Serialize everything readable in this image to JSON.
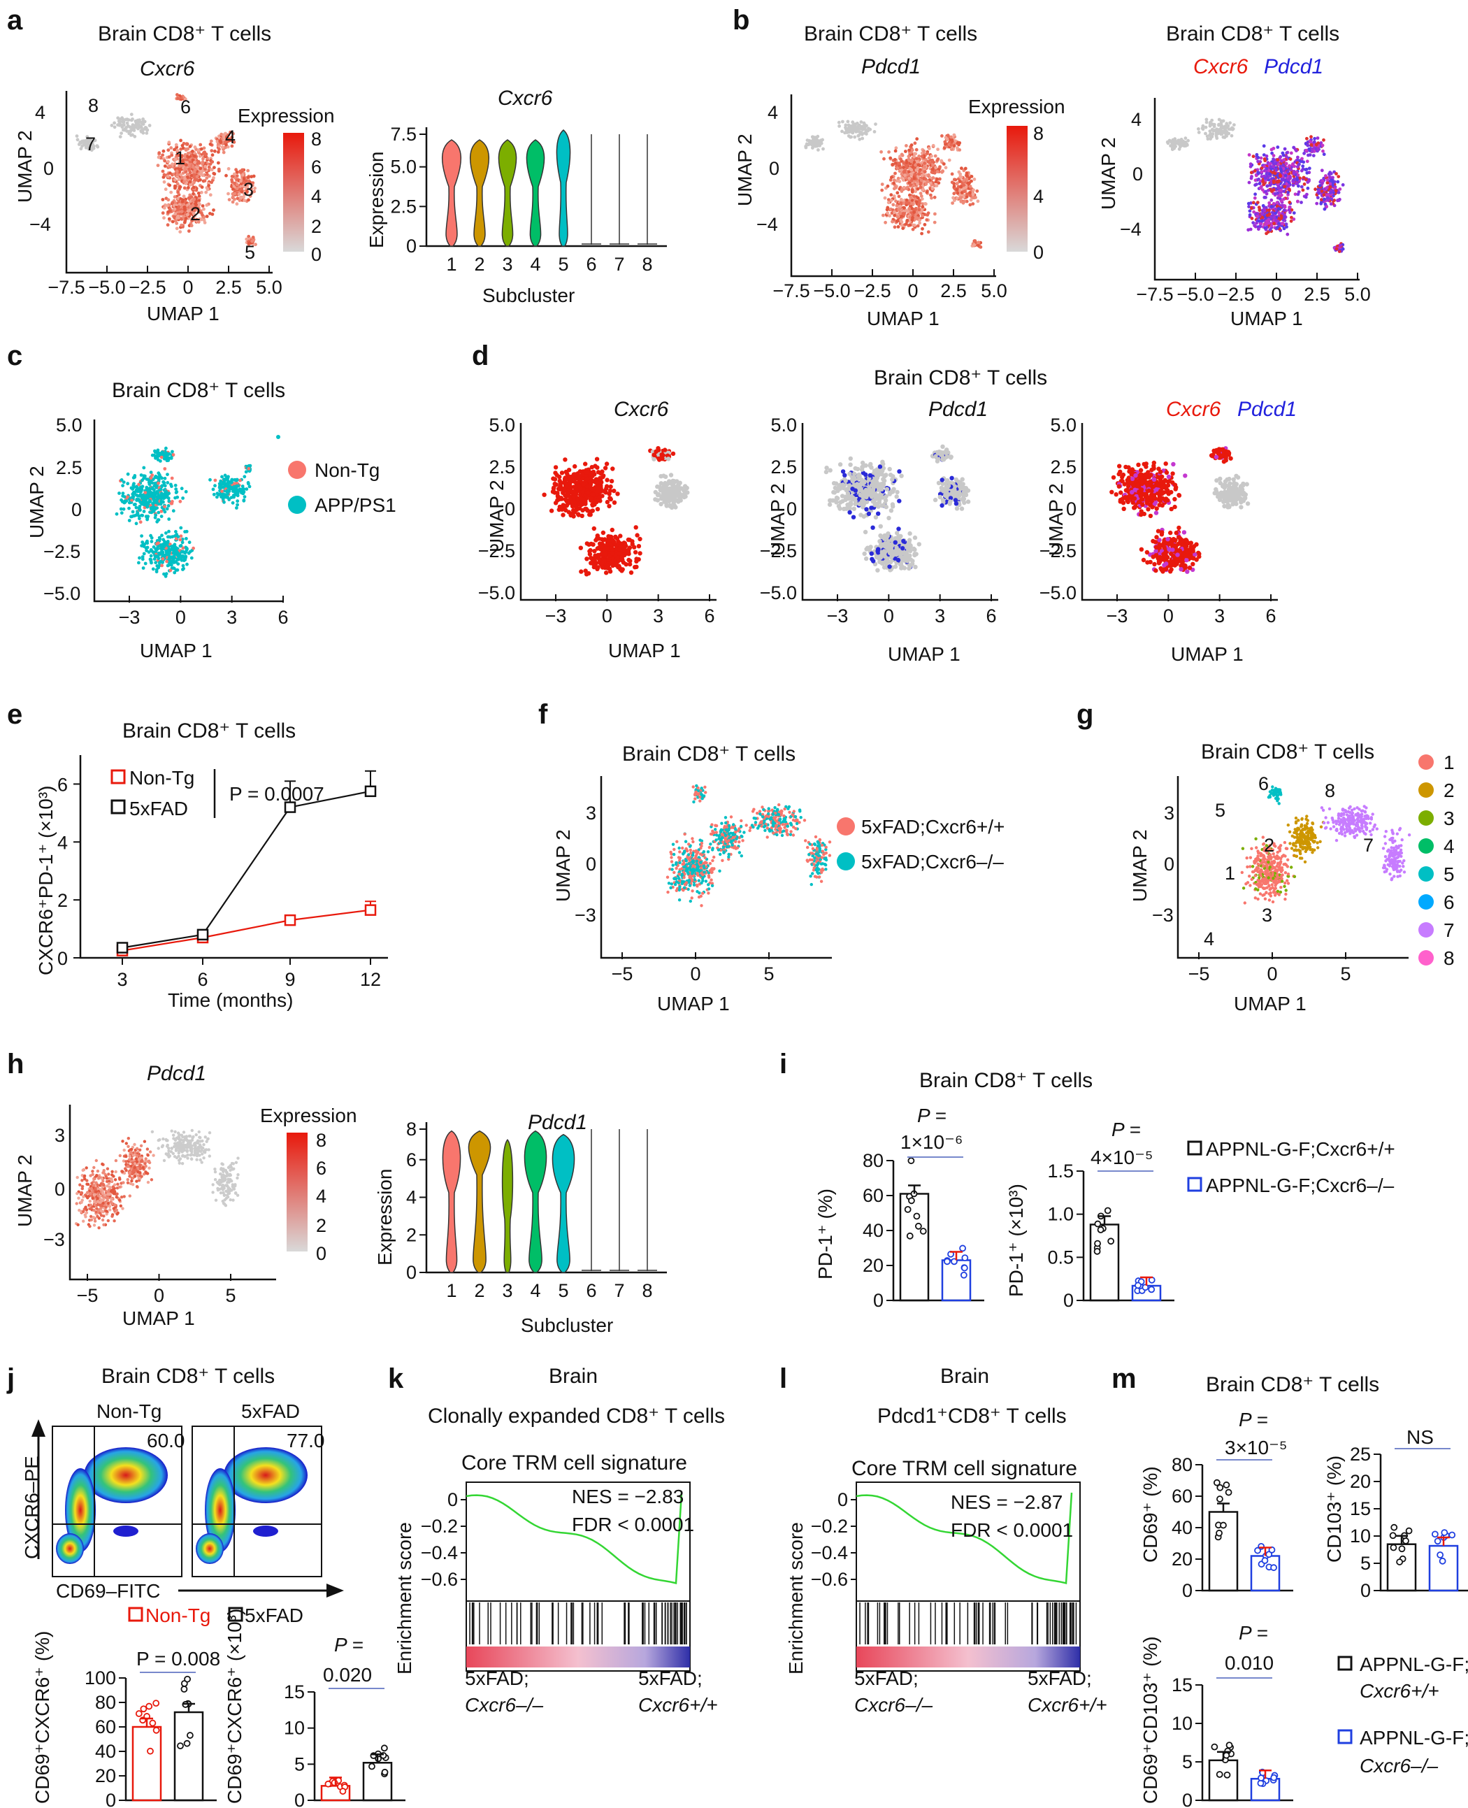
{
  "panel_labels": [
    "a",
    "b",
    "c",
    "d",
    "e",
    "f",
    "g",
    "h",
    "i",
    "j",
    "k",
    "l",
    "m"
  ],
  "title_brain_cd8": "Brain CD8⁺ T cells",
  "gene_cxcr6": "Cxcr6",
  "gene_pdcd1": "Pdcd1",
  "axis_umap1": "UMAP 1",
  "axis_umap2": "UMAP 2",
  "axis_expression": "Expression",
  "axis_subcluster": "Subcluster",
  "legend_expression": "Expression",
  "ticks_a_x": [
    "−7.5",
    "−5.0",
    "−2.5",
    "0",
    "2.5",
    "5.0"
  ],
  "ticks_a_y": [
    "4",
    "0",
    "−4"
  ],
  "ticks_expr": [
    "8",
    "6",
    "4",
    "2",
    "0"
  ],
  "ticks_b_expr": [
    "8",
    "4",
    "0"
  ],
  "ticks_violin_a_y": [
    "7.5",
    "5.0",
    "2.5",
    "0"
  ],
  "ticks_violin_h_y": [
    "8",
    "6",
    "4",
    "2",
    "0"
  ],
  "subcluster_labels": [
    "1",
    "2",
    "3",
    "4",
    "5",
    "6",
    "7",
    "8"
  ],
  "cluster_colors": [
    "#f8766d",
    "#cd9600",
    "#7cae00",
    "#00be67",
    "#00bfc4",
    "#00a9ff",
    "#c77cff",
    "#ff61cc"
  ],
  "ticks_c_x": [
    "−3",
    "0",
    "3",
    "6"
  ],
  "ticks_c_y": [
    "5.0",
    "2.5",
    "0",
    "−2.5",
    "−5.0"
  ],
  "legend_c": [
    "Non-Tg",
    "APP/PS1"
  ],
  "panel_e": {
    "title": "Brain CD8⁺ T cells",
    "legend": [
      "Non-Tg",
      "5xFAD"
    ],
    "pvalue": "P = 0.0007",
    "ylabel": "CXCR6⁺PD-1⁺ (×10³)",
    "xlabel": "Time (months)"
  },
  "ticks_f_x": [
    "−5",
    "0",
    "5"
  ],
  "ticks_f_y": [
    "3",
    "0",
    "−3"
  ],
  "legend_f": [
    "5xFAD;Cxcr6+/+",
    "5xFAD;Cxcr6–/–"
  ],
  "panel_i": {
    "title": "Brain CD8⁺ T cells",
    "p_left_1": "P =",
    "p_left_2": "1×10⁻⁶",
    "p_right_1": "P =",
    "p_right_2": "4×10⁻⁵",
    "ylabel_left": "PD-1⁺ (%)",
    "ylabel_right": "PD-1⁺ (×10³)",
    "ticks_left": [
      "80",
      "60",
      "40",
      "20",
      "0"
    ],
    "ticks_right": [
      "1.5",
      "1.0",
      "0.5",
      "0"
    ],
    "legend": [
      "APPNL-G-F;Cxcr6+/+",
      "APPNL-G-F;Cxcr6–/–"
    ]
  },
  "panel_j": {
    "title": "Brain CD8⁺ T cells",
    "groups": [
      "Non-Tg",
      "5xFAD"
    ],
    "gate_values": [
      "60.0",
      "77.0"
    ],
    "yaxis": "CXCR6–PE",
    "xaxis": "CD69–FITC",
    "legend": [
      "Non-Tg",
      "5xFAD"
    ],
    "p_left": "P = 0.008",
    "p_right_1": "P =",
    "p_right_2": "0.020",
    "ylabel_left": "CD69⁺CXCR6⁺ (%)",
    "ylabel_right": "CD69⁺CXCR6⁺ (×10³)",
    "ticks_left": [
      "100",
      "80",
      "60",
      "40",
      "20",
      "0"
    ],
    "ticks_right": [
      "15",
      "10",
      "5",
      "0"
    ]
  },
  "panel_k": {
    "title1": "Brain",
    "title2": "Clonally expanded CD8⁺ T cells",
    "sig": "Core TRM cell signature",
    "nes": "NES = −2.83",
    "fdr": "FDR < 0.0001",
    "ylabel": "Enrichment score",
    "ticks": [
      "0",
      "−0.2",
      "−0.4",
      "−0.6"
    ],
    "left_label": [
      "5xFAD;",
      "Cxcr6–/–"
    ],
    "right_label": [
      "5xFAD;",
      "Cxcr6+/+"
    ]
  },
  "panel_l": {
    "title1": "Brain",
    "title2": "Pdcd1⁺CD8⁺ T cells",
    "sig": "Core TRM cell signature",
    "nes": "NES = −2.87",
    "fdr": "FDR < 0.0001",
    "ylabel": "Enrichment score",
    "ticks": [
      "0",
      "−0.2",
      "−0.4",
      "−0.6"
    ],
    "left_label": [
      "5xFAD;",
      "Cxcr6–/–"
    ],
    "right_label": [
      "5xFAD;",
      "Cxcr6+/+"
    ]
  },
  "panel_m": {
    "title": "Brain CD8⁺ T cells",
    "p_cd69_1": "P =",
    "p_cd69_2": "3×10⁻⁵",
    "ns": "NS",
    "p_dp_1": "P =",
    "p_dp_2": "0.010",
    "ylabel_cd69": "CD69⁺ (%)",
    "ylabel_cd103": "CD103⁺ (%)",
    "ylabel_dp": "CD69⁺CD103⁺ (%)",
    "ticks_cd69": [
      "80",
      "60",
      "40",
      "20",
      "0"
    ],
    "ticks_cd103": [
      "25",
      "20",
      "15",
      "10",
      "5",
      "0"
    ],
    "ticks_dp": [
      "15",
      "10",
      "5",
      "0"
    ],
    "legend": [
      "APPNL-G-F;",
      "Cxcr6+/+",
      "APPNL-G-F;",
      "Cxcr6–/–"
    ]
  },
  "chart_data": [
    {
      "type": "line",
      "title": "Brain CD8⁺ T cells",
      "x": [
        3,
        6,
        9,
        12
      ],
      "series": [
        {
          "name": "Non-Tg",
          "values": [
            0.25,
            0.7,
            1.3,
            1.65
          ],
          "error": [
            0.05,
            0.1,
            0.15,
            0.3
          ]
        },
        {
          "name": "5xFAD",
          "values": [
            0.35,
            0.8,
            5.2,
            5.75
          ],
          "error": [
            0.05,
            0.1,
            0.9,
            0.7
          ]
        }
      ],
      "xlabel": "Time (months)",
      "ylabel": "CXCR6⁺PD-1⁺ (×10³)",
      "ylim": [
        0,
        7
      ]
    },
    {
      "type": "bar",
      "title": "PD-1⁺ (%)",
      "categories": [
        "APPNL-G-F;Cxcr6+/+",
        "APPNL-G-F;Cxcr6–/–"
      ],
      "values": [
        61,
        23
      ],
      "ylim": [
        0,
        80
      ]
    },
    {
      "type": "bar",
      "title": "PD-1⁺ (×10³)",
      "categories": [
        "APPNL-G-F;Cxcr6+/+",
        "APPNL-G-F;Cxcr6–/–"
      ],
      "values": [
        0.88,
        0.17
      ],
      "ylim": [
        0,
        1.5
      ]
    },
    {
      "type": "bar",
      "title": "CD69⁺CXCR6⁺ (%)",
      "categories": [
        "Non-Tg",
        "5xFAD"
      ],
      "values": [
        60,
        72
      ],
      "ylim": [
        0,
        100
      ]
    },
    {
      "type": "bar",
      "title": "CD69⁺CXCR6⁺ (×10³)",
      "categories": [
        "Non-Tg",
        "5xFAD"
      ],
      "values": [
        2,
        5.2
      ],
      "ylim": [
        0,
        15
      ]
    },
    {
      "type": "bar",
      "title": "CD69⁺ (%)",
      "categories": [
        "APPNL-G-F;Cxcr6+/+",
        "APPNL-G-F;Cxcr6–/–"
      ],
      "values": [
        50,
        22
      ],
      "ylim": [
        0,
        80
      ]
    },
    {
      "type": "bar",
      "title": "CD103⁺ (%)",
      "categories": [
        "APPNL-G-F;Cxcr6+/+",
        "APPNL-G-F;Cxcr6–/–"
      ],
      "values": [
        8.5,
        8.2
      ],
      "ylim": [
        0,
        25
      ]
    },
    {
      "type": "bar",
      "title": "CD69⁺CD103⁺ (%)",
      "categories": [
        "APPNL-G-F;Cxcr6+/+",
        "APPNL-G-F;Cxcr6–/–"
      ],
      "values": [
        5.2,
        2.8
      ],
      "ylim": [
        0,
        15
      ]
    }
  ]
}
